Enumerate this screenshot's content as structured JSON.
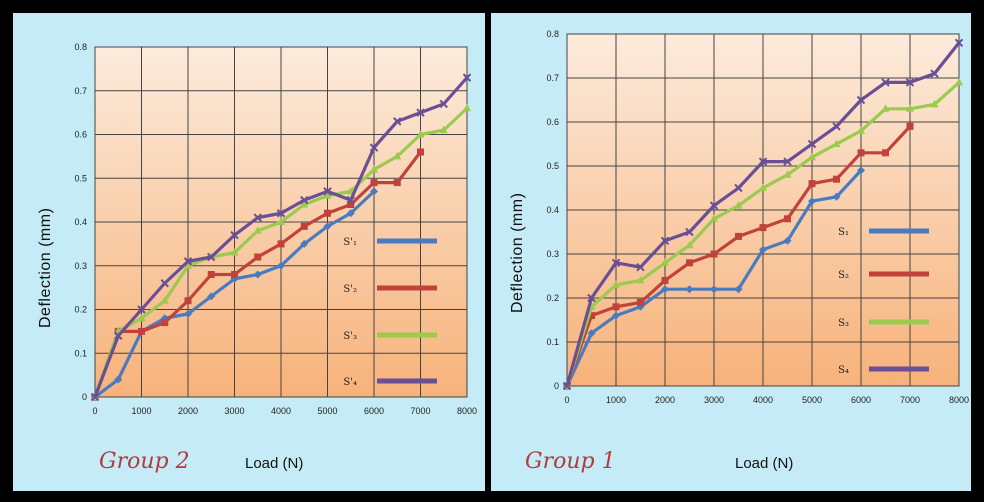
{
  "colors": {
    "s1": "#4a7bc0",
    "s2": "#c0423a",
    "s3": "#9acb4e",
    "s4": "#6a4f96",
    "plot_top": "#fcebdc",
    "plot_bottom": "#f7b27a",
    "panel_bg": "#c5ecf6"
  },
  "chart_data": [
    {
      "type": "line",
      "group_label": "Group 2",
      "xlabel": "Load (N)",
      "ylabel": "Deflection (mm)",
      "xlim": [
        0,
        8000
      ],
      "ylim": [
        0,
        0.8
      ],
      "xticks": [
        "0",
        "1000",
        "2000",
        "3000",
        "4000",
        "5000",
        "6000",
        "7000",
        "8000"
      ],
      "yticks": [
        "0",
        "0.1",
        "0.2",
        "0.3",
        "0.4",
        "0.5",
        "0.6",
        "0.7",
        "0.8"
      ],
      "grid": true,
      "legend_position": "right",
      "series": [
        {
          "name": "S'₁",
          "marker": "diamond",
          "x": [
            0,
            500,
            1000,
            1500,
            2000,
            2500,
            3000,
            3500,
            4000,
            4500,
            5000,
            5500,
            6000
          ],
          "y": [
            0,
            0.04,
            0.15,
            0.18,
            0.19,
            0.23,
            0.27,
            0.28,
            0.3,
            0.35,
            0.39,
            0.42,
            0.47
          ]
        },
        {
          "name": "S'₂",
          "marker": "square",
          "x": [
            0,
            500,
            1000,
            1500,
            2000,
            2500,
            3000,
            3500,
            4000,
            4500,
            5000,
            5500,
            6000,
            6500,
            7000
          ],
          "y": [
            0,
            0.15,
            0.15,
            0.17,
            0.22,
            0.28,
            0.28,
            0.32,
            0.35,
            0.39,
            0.42,
            0.44,
            0.49,
            0.49,
            0.56
          ]
        },
        {
          "name": "S'₃",
          "marker": "triangle",
          "x": [
            0,
            500,
            1000,
            1500,
            2000,
            2500,
            3000,
            3500,
            4000,
            4500,
            5000,
            5500,
            6000,
            6500,
            7000,
            7500,
            8000
          ],
          "y": [
            0,
            0.15,
            0.18,
            0.22,
            0.3,
            0.32,
            0.33,
            0.38,
            0.4,
            0.44,
            0.46,
            0.47,
            0.52,
            0.55,
            0.6,
            0.61,
            0.66
          ]
        },
        {
          "name": "S'₄",
          "marker": "cross",
          "x": [
            0,
            500,
            1000,
            1500,
            2000,
            2500,
            3000,
            3500,
            4000,
            4500,
            5000,
            5500,
            6000,
            6500,
            7000,
            7500,
            8000
          ],
          "y": [
            0,
            0.14,
            0.2,
            0.26,
            0.31,
            0.32,
            0.37,
            0.41,
            0.42,
            0.45,
            0.47,
            0.45,
            0.57,
            0.63,
            0.65,
            0.67,
            0.73
          ]
        }
      ]
    },
    {
      "type": "line",
      "group_label": "Group 1",
      "xlabel": "Load (N)",
      "ylabel": "Deflection (mm)",
      "xlim": [
        0,
        8000
      ],
      "ylim": [
        0,
        0.8
      ],
      "xticks": [
        "0",
        "1000",
        "2000",
        "3000",
        "4000",
        "5000",
        "6000",
        "7000",
        "8000"
      ],
      "yticks": [
        "0",
        "0.1",
        "0.2",
        "0.3",
        "0.4",
        "0.5",
        "0.6",
        "0.7",
        "0.8"
      ],
      "grid": true,
      "legend_position": "right",
      "series": [
        {
          "name": "S₁",
          "marker": "diamond",
          "x": [
            0,
            500,
            1000,
            1500,
            2000,
            2500,
            3000,
            3500,
            4000,
            4500,
            5000,
            5500,
            6000
          ],
          "y": [
            0,
            0.12,
            0.16,
            0.18,
            0.22,
            0.22,
            0.22,
            0.22,
            0.31,
            0.33,
            0.42,
            0.43,
            0.49
          ]
        },
        {
          "name": "S₂",
          "marker": "square",
          "x": [
            0,
            500,
            1000,
            1500,
            2000,
            2500,
            3000,
            3500,
            4000,
            4500,
            5000,
            5500,
            6000,
            6500,
            7000
          ],
          "y": [
            0,
            0.16,
            0.18,
            0.19,
            0.24,
            0.28,
            0.3,
            0.34,
            0.36,
            0.38,
            0.46,
            0.47,
            0.53,
            0.53,
            0.59
          ]
        },
        {
          "name": "S₃",
          "marker": "triangle",
          "x": [
            0,
            500,
            1000,
            1500,
            2000,
            2500,
            3000,
            3500,
            4000,
            4500,
            5000,
            5500,
            6000,
            6500,
            7000,
            7500,
            8000
          ],
          "y": [
            0,
            0.18,
            0.23,
            0.24,
            0.28,
            0.32,
            0.38,
            0.41,
            0.45,
            0.48,
            0.52,
            0.55,
            0.58,
            0.63,
            0.63,
            0.64,
            0.69
          ]
        },
        {
          "name": "S₄",
          "marker": "cross",
          "x": [
            0,
            500,
            1000,
            1500,
            2000,
            2500,
            3000,
            3500,
            4000,
            4500,
            5000,
            5500,
            6000,
            6500,
            7000,
            7500,
            8000
          ],
          "y": [
            0,
            0.2,
            0.28,
            0.27,
            0.33,
            0.35,
            0.41,
            0.45,
            0.51,
            0.51,
            0.55,
            0.59,
            0.65,
            0.69,
            0.69,
            0.71,
            0.78
          ]
        }
      ]
    }
  ]
}
